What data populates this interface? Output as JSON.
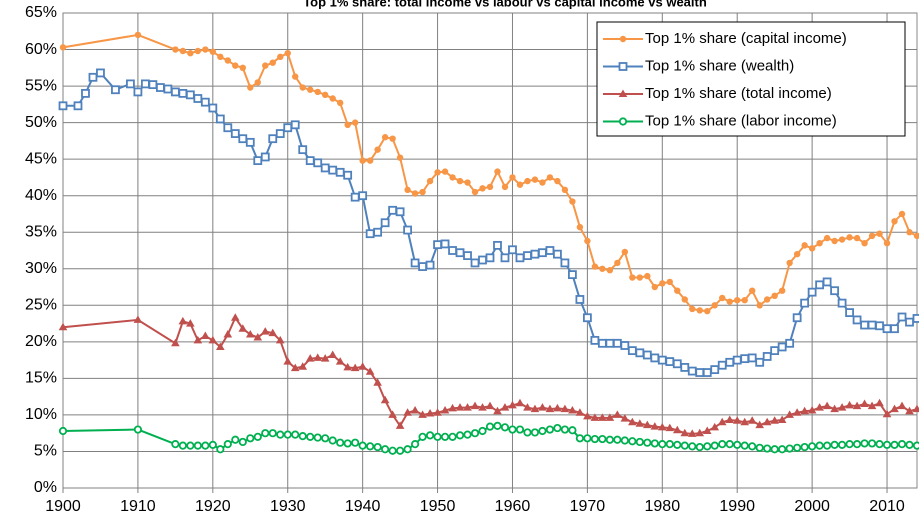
{
  "chart_data": {
    "type": "line",
    "title": "Top 1% share: total income vs labour vs capital income vs wealth",
    "xlim": [
      1900,
      2014
    ],
    "xticks": [
      1900,
      1910,
      1920,
      1930,
      1940,
      1950,
      1960,
      1970,
      1980,
      1990,
      2000,
      2010
    ],
    "ylim": [
      0,
      65
    ],
    "yticks": [
      {
        "value": 0,
        "label": "0%"
      },
      {
        "value": 5,
        "label": "5%"
      },
      {
        "value": 10,
        "label": "10%"
      },
      {
        "value": 15,
        "label": "15%"
      },
      {
        "value": 20,
        "label": "20%"
      },
      {
        "value": 25,
        "label": "25%"
      },
      {
        "value": 30,
        "label": "30%"
      },
      {
        "value": 35,
        "label": "35%"
      },
      {
        "value": 40,
        "label": "40%"
      },
      {
        "value": 45,
        "label": "45%"
      },
      {
        "value": 50,
        "label": "50%"
      },
      {
        "value": 55,
        "label": "55%"
      },
      {
        "value": 60,
        "label": "60%"
      },
      {
        "value": 65,
        "label": "65%"
      }
    ],
    "grid": true,
    "legend": "upper right",
    "series": [
      {
        "name": "Top 1% share (capital income)",
        "color": "#f79646",
        "marker": "circle",
        "x": [
          1900,
          1910,
          1915,
          1916,
          1917,
          1918,
          1919,
          1920,
          1921,
          1922,
          1923,
          1924,
          1925,
          1926,
          1927,
          1928,
          1929,
          1930,
          1931,
          1932,
          1933,
          1934,
          1935,
          1936,
          1937,
          1938,
          1939,
          1940,
          1941,
          1942,
          1943,
          1944,
          1945,
          1946,
          1947,
          1948,
          1949,
          1950,
          1951,
          1952,
          1953,
          1954,
          1955,
          1956,
          1957,
          1958,
          1959,
          1960,
          1961,
          1962,
          1963,
          1964,
          1965,
          1966,
          1967,
          1968,
          1969,
          1970,
          1971,
          1972,
          1973,
          1974,
          1975,
          1976,
          1977,
          1978,
          1979,
          1980,
          1981,
          1982,
          1983,
          1984,
          1985,
          1986,
          1987,
          1988,
          1989,
          1990,
          1991,
          1992,
          1993,
          1994,
          1995,
          1996,
          1997,
          1998,
          1999,
          2000,
          2001,
          2002,
          2003,
          2004,
          2005,
          2006,
          2007,
          2008,
          2009,
          2010,
          2011,
          2012,
          2013,
          2014
        ],
        "values": [
          60.3,
          62,
          60,
          59.8,
          59.5,
          59.8,
          60,
          59.7,
          59,
          58.5,
          57.8,
          57.5,
          54.8,
          55.5,
          57.8,
          58.2,
          59,
          59.5,
          56.3,
          54.8,
          54.5,
          54.2,
          53.8,
          53.3,
          52.7,
          49.7,
          50,
          44.8,
          44.8,
          46.3,
          48,
          47.8,
          45.2,
          40.8,
          40.3,
          40.5,
          42,
          43.2,
          43.3,
          42.5,
          42,
          41.8,
          40.5,
          41,
          41.2,
          43.3,
          41.2,
          42.5,
          41.5,
          42,
          42.2,
          41.8,
          42.5,
          42,
          40.8,
          39.2,
          35.7,
          33.8,
          30.3,
          30,
          29.8,
          30.8,
          32.3,
          28.8,
          28.8,
          29,
          27.5,
          28,
          28.2,
          27,
          25.8,
          24.5,
          24.3,
          24.2,
          25,
          26,
          25.5,
          25.7,
          25.7,
          27,
          25,
          25.8,
          26.3,
          27,
          30.8,
          32,
          33.2,
          32.8,
          33.5,
          34.2,
          33.8,
          34,
          34.3,
          34.2,
          33.5,
          34.5,
          34.8,
          33.5,
          36.5,
          37.5,
          35,
          34.5
        ]
      },
      {
        "name": "Top 1% share (wealth)",
        "color": "#4f81bd",
        "marker": "square",
        "x": [
          1900,
          1902,
          1903,
          1904,
          1905,
          1907,
          1909,
          1910,
          1911,
          1912,
          1913,
          1914,
          1915,
          1916,
          1917,
          1918,
          1919,
          1920,
          1921,
          1922,
          1923,
          1924,
          1925,
          1926,
          1927,
          1928,
          1929,
          1930,
          1931,
          1932,
          1933,
          1934,
          1935,
          1936,
          1937,
          1938,
          1939,
          1940,
          1941,
          1942,
          1943,
          1944,
          1945,
          1946,
          1947,
          1948,
          1949,
          1950,
          1951,
          1952,
          1953,
          1954,
          1955,
          1956,
          1957,
          1958,
          1959,
          1960,
          1961,
          1962,
          1963,
          1964,
          1965,
          1966,
          1967,
          1968,
          1969,
          1970,
          1971,
          1972,
          1973,
          1974,
          1975,
          1976,
          1977,
          1978,
          1979,
          1980,
          1981,
          1982,
          1983,
          1984,
          1985,
          1986,
          1987,
          1988,
          1989,
          1990,
          1991,
          1992,
          1993,
          1994,
          1995,
          1996,
          1997,
          1998,
          1999,
          2000,
          2001,
          2002,
          2003,
          2004,
          2005,
          2006,
          2007,
          2008,
          2009,
          2010,
          2011,
          2012,
          2013,
          2014
        ],
        "values": [
          52.3,
          52.3,
          54,
          56.2,
          56.8,
          54.5,
          55.3,
          54.2,
          55.3,
          55.2,
          54.8,
          54.6,
          54.2,
          54,
          53.8,
          53.3,
          52.8,
          52,
          50.5,
          49.3,
          48.5,
          47.8,
          47.3,
          44.8,
          45.3,
          47.8,
          48.5,
          49.3,
          49.7,
          46.3,
          44.8,
          44.5,
          43.8,
          43.5,
          43.2,
          42.8,
          39.8,
          40,
          34.8,
          35,
          36.3,
          38,
          37.8,
          35.3,
          30.8,
          30.3,
          30.5,
          33.3,
          33.4,
          32.5,
          32.2,
          31.8,
          30.8,
          31.2,
          31.5,
          33.2,
          31.5,
          32.6,
          31.5,
          31.8,
          32,
          32.2,
          32.5,
          32,
          30.8,
          29.2,
          25.8,
          23.3,
          20.2,
          19.8,
          19.8,
          19.8,
          19.5,
          18.8,
          18.5,
          18.2,
          17.8,
          17.5,
          17.3,
          17,
          16.5,
          16,
          15.8,
          15.8,
          16.2,
          16.8,
          17.2,
          17.5,
          17.7,
          17.8,
          17.2,
          18,
          18.8,
          19.3,
          19.8,
          23.3,
          25.3,
          26.8,
          27.8,
          28.2,
          27,
          25.3,
          24,
          23,
          22.3,
          22.3,
          22.2,
          21.8,
          21.8,
          23.4,
          22.7,
          23.2
        ]
      },
      {
        "name": "Top 1% share (total income)",
        "color": "#c0504d",
        "marker": "triangle",
        "x": [
          1900,
          1910,
          1915,
          1916,
          1917,
          1918,
          1919,
          1920,
          1921,
          1922,
          1923,
          1924,
          1925,
          1926,
          1927,
          1928,
          1929,
          1930,
          1931,
          1932,
          1933,
          1934,
          1935,
          1936,
          1937,
          1938,
          1939,
          1940,
          1941,
          1942,
          1943,
          1944,
          1945,
          1946,
          1947,
          1948,
          1949,
          1950,
          1951,
          1952,
          1953,
          1954,
          1955,
          1956,
          1957,
          1958,
          1959,
          1960,
          1961,
          1962,
          1963,
          1964,
          1965,
          1966,
          1967,
          1968,
          1969,
          1970,
          1971,
          1972,
          1973,
          1974,
          1975,
          1976,
          1977,
          1978,
          1979,
          1980,
          1981,
          1982,
          1983,
          1984,
          1985,
          1986,
          1987,
          1988,
          1989,
          1990,
          1991,
          1992,
          1993,
          1994,
          1995,
          1996,
          1997,
          1998,
          1999,
          2000,
          2001,
          2002,
          2003,
          2004,
          2005,
          2006,
          2007,
          2008,
          2009,
          2010,
          2011,
          2012,
          2013,
          2014
        ],
        "values": [
          22,
          23,
          19.8,
          22.8,
          22.5,
          20.2,
          20.8,
          20.2,
          19.3,
          21,
          23.3,
          21.8,
          21,
          20.6,
          21.4,
          21.2,
          20.2,
          17.3,
          16.4,
          16.6,
          17.7,
          17.8,
          17.7,
          18.2,
          17.3,
          16.5,
          16.4,
          16.6,
          15.9,
          14.4,
          12,
          10,
          8.5,
          10.3,
          10.6,
          10,
          10.2,
          10.3,
          10.6,
          10.9,
          11,
          11,
          11.2,
          11,
          11.2,
          10.5,
          11,
          11.3,
          11.6,
          11,
          10.8,
          11,
          10.8,
          10.9,
          10.8,
          10.6,
          10.3,
          9.8,
          9.6,
          9.6,
          9.6,
          10,
          9.5,
          9,
          8.8,
          8.6,
          8.4,
          8.3,
          8.2,
          7.9,
          7.5,
          7.4,
          7.5,
          7.8,
          8.3,
          9,
          9.3,
          9.2,
          9,
          9.2,
          8.6,
          9,
          9.2,
          9.3,
          10,
          10.3,
          10.5,
          10.6,
          11,
          11.2,
          10.8,
          11,
          11.3,
          11.2,
          11.5,
          11.2,
          11.6,
          10.1,
          10.8,
          11.2,
          10.5,
          10.8
        ]
      },
      {
        "name": "Top 1% share (labor income)",
        "color": "#00b050",
        "marker": "circle-open",
        "x": [
          1900,
          1910,
          1915,
          1916,
          1917,
          1918,
          1919,
          1920,
          1921,
          1922,
          1923,
          1924,
          1925,
          1926,
          1927,
          1928,
          1929,
          1930,
          1931,
          1932,
          1933,
          1934,
          1935,
          1936,
          1937,
          1938,
          1939,
          1940,
          1941,
          1942,
          1943,
          1944,
          1945,
          1946,
          1947,
          1948,
          1949,
          1950,
          1951,
          1952,
          1953,
          1954,
          1955,
          1956,
          1957,
          1958,
          1959,
          1960,
          1961,
          1962,
          1963,
          1964,
          1965,
          1966,
          1967,
          1968,
          1969,
          1970,
          1971,
          1972,
          1973,
          1974,
          1975,
          1976,
          1977,
          1978,
          1979,
          1980,
          1981,
          1982,
          1983,
          1984,
          1985,
          1986,
          1987,
          1988,
          1989,
          1990,
          1991,
          1992,
          1993,
          1994,
          1995,
          1996,
          1997,
          1998,
          1999,
          2000,
          2001,
          2002,
          2003,
          2004,
          2005,
          2006,
          2007,
          2008,
          2009,
          2010,
          2011,
          2012,
          2013,
          2014
        ],
        "values": [
          7.8,
          8,
          6,
          5.8,
          5.8,
          5.8,
          5.8,
          5.9,
          5.3,
          6,
          6.6,
          6.3,
          6.8,
          7,
          7.5,
          7.5,
          7.3,
          7.3,
          7.3,
          7.1,
          7,
          6.9,
          6.8,
          6.5,
          6.2,
          6.1,
          6.2,
          5.8,
          5.7,
          5.6,
          5.3,
          5.1,
          5.1,
          5.3,
          6,
          7,
          7.2,
          7,
          7,
          7,
          7.2,
          7.3,
          7.5,
          7.8,
          8.4,
          8.5,
          8.3,
          8,
          8,
          7.6,
          7.6,
          7.8,
          8,
          8.2,
          8,
          7.9,
          6.8,
          6.8,
          6.7,
          6.7,
          6.6,
          6.6,
          6.5,
          6.4,
          6.3,
          6.2,
          6.1,
          6,
          6,
          5.9,
          5.8,
          5.7,
          5.6,
          5.7,
          5.8,
          6,
          6,
          5.9,
          5.8,
          5.7,
          5.5,
          5.4,
          5.3,
          5.3,
          5.4,
          5.5,
          5.6,
          5.7,
          5.8,
          5.8,
          5.9,
          5.9,
          6,
          6,
          6.1,
          6.1,
          6,
          5.9,
          5.9,
          6,
          5.9,
          5.8
        ]
      }
    ]
  }
}
